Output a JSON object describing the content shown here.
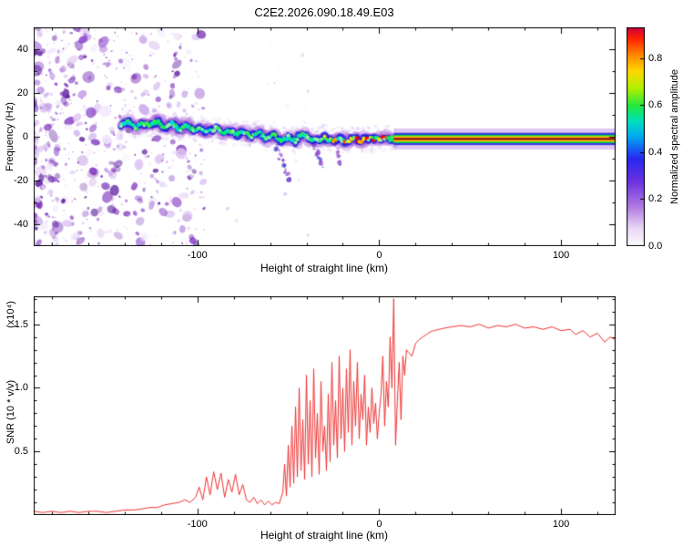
{
  "title": "C2E2.2026.090.18.49.E03",
  "colorbar": {
    "label": "Normalized spectral amplitude",
    "range": [
      0,
      0.93
    ],
    "ticks": [
      0.0,
      0.2,
      0.4,
      0.6,
      0.8
    ],
    "tick_labels": [
      "0.0",
      "0.2",
      "0.4",
      "0.6",
      "0.8"
    ],
    "stops": [
      [
        0,
        "#fdfbff"
      ],
      [
        0.08,
        "#e9d9f6"
      ],
      [
        0.18,
        "#b07ae2"
      ],
      [
        0.3,
        "#6a30e0"
      ],
      [
        0.4,
        "#2828f0"
      ],
      [
        0.5,
        "#00a8f0"
      ],
      [
        0.57,
        "#00e0c0"
      ],
      [
        0.64,
        "#20e840"
      ],
      [
        0.72,
        "#b0f000"
      ],
      [
        0.8,
        "#ffd800"
      ],
      [
        0.88,
        "#ff8000"
      ],
      [
        0.95,
        "#ff2000"
      ],
      [
        1,
        "#cc0040"
      ]
    ]
  },
  "chart_data": [
    {
      "type": "heatmap",
      "name": "doppler-spectrogram",
      "xlabel": "Height of straight line (km)",
      "ylabel": "Frequency (Hz)",
      "xlim": [
        -190,
        130
      ],
      "ylim": [
        -50,
        50
      ],
      "xticks": [
        -100,
        0,
        100
      ],
      "xtick_labels": [
        "-100",
        "0",
        "100"
      ],
      "yticks": [
        -40,
        -20,
        0,
        20,
        40
      ],
      "ytick_labels": [
        "-40",
        "-20",
        "0",
        "20",
        "40"
      ],
      "x_minor_step": 20,
      "y_minor_step": 10,
      "noise": {
        "x_range": [
          -192,
          -96
        ],
        "count": 680,
        "sparse_count": 25,
        "tiny_count": 60,
        "palette": [
          "#f2e8fb",
          "#ddc4f2",
          "#bf97e6",
          "#a06ad8",
          "#8b46c8",
          "#7a30b8",
          "#5e1f9e"
        ]
      },
      "trace": [
        [
          -142,
          5
        ],
        [
          -138,
          7
        ],
        [
          -134,
          4
        ],
        [
          -130,
          6
        ],
        [
          -126,
          5
        ],
        [
          -122,
          7
        ],
        [
          -118,
          4
        ],
        [
          -114,
          6
        ],
        [
          -110,
          3
        ],
        [
          -106,
          5
        ],
        [
          -102,
          3
        ],
        [
          -98,
          4
        ],
        [
          -94,
          2
        ],
        [
          -90,
          4
        ],
        [
          -86,
          2
        ],
        [
          -82,
          3
        ],
        [
          -78,
          1
        ],
        [
          -74,
          2
        ],
        [
          -70,
          0
        ],
        [
          -66,
          2
        ],
        [
          -62,
          -1
        ],
        [
          -58,
          1
        ],
        [
          -54,
          -2
        ],
        [
          -50,
          0
        ],
        [
          -46,
          -2
        ],
        [
          -42,
          2
        ],
        [
          -38,
          -1
        ],
        [
          -34,
          -2
        ],
        [
          -30,
          0
        ],
        [
          -26,
          -2
        ],
        [
          -22,
          -1
        ],
        [
          -18,
          -2
        ],
        [
          -14,
          -1
        ],
        [
          -10,
          -2
        ],
        [
          -6,
          -1
        ],
        [
          -2,
          -1
        ],
        [
          2,
          -1
        ],
        [
          6,
          -1
        ],
        [
          9,
          -1
        ]
      ],
      "hot_region": [
        -32,
        7
      ],
      "streaks": [
        [
          [
            -57,
            -4
          ],
          [
            -49,
            -20
          ]
        ],
        [
          [
            -36,
            -3
          ],
          [
            -31,
            -14
          ]
        ],
        [
          [
            -24,
            -4
          ],
          [
            -21,
            -12
          ]
        ]
      ],
      "straight_line": {
        "x_start": 8,
        "x_end": 130,
        "freq": -1
      },
      "trace_colors": {
        "halo": "rgba(150,70,210,0.28)",
        "mid": "rgba(35,35,225,0.8)",
        "cool_cores": [
          "#00e87c",
          "#00ddd0",
          "#35ef4f",
          "#8ff0b0"
        ],
        "hot_cores": [
          "#ffe000",
          "#ff9800",
          "#ff3800",
          "#ff0000"
        ]
      }
    },
    {
      "type": "line",
      "name": "snr-profile",
      "xlabel": "Height of straight line (km)",
      "ylabel": "SNR (10 * v/v)",
      "scale_label": "(x10⁴)",
      "color": "#ee3333",
      "xlim": [
        -190,
        130
      ],
      "ylim": [
        0,
        1.72
      ],
      "xticks": [
        -100,
        0,
        100
      ],
      "xtick_labels": [
        "-100",
        "0",
        "100"
      ],
      "yticks": [
        0.5,
        1.0,
        1.5
      ],
      "ytick_labels": [
        "0.5",
        "1.0",
        "1.5"
      ],
      "x_minor_step": 20,
      "y_minor_step": 0.1,
      "points": [
        [
          -190,
          0.03
        ],
        [
          -185,
          0.02
        ],
        [
          -180,
          0.03
        ],
        [
          -175,
          0.02
        ],
        [
          -170,
          0.03
        ],
        [
          -165,
          0.02
        ],
        [
          -160,
          0.03
        ],
        [
          -155,
          0.03
        ],
        [
          -150,
          0.02
        ],
        [
          -145,
          0.03
        ],
        [
          -140,
          0.04
        ],
        [
          -135,
          0.04
        ],
        [
          -130,
          0.05
        ],
        [
          -126,
          0.06
        ],
        [
          -122,
          0.06
        ],
        [
          -118,
          0.08
        ],
        [
          -114,
          0.09
        ],
        [
          -110,
          0.1
        ],
        [
          -107,
          0.12
        ],
        [
          -104,
          0.1
        ],
        [
          -101,
          0.14
        ],
        [
          -99,
          0.22
        ],
        [
          -97,
          0.12
        ],
        [
          -95,
          0.3
        ],
        [
          -93,
          0.16
        ],
        [
          -91,
          0.34
        ],
        [
          -89,
          0.2
        ],
        [
          -87,
          0.33
        ],
        [
          -85,
          0.14
        ],
        [
          -83,
          0.28
        ],
        [
          -81,
          0.18
        ],
        [
          -79,
          0.32
        ],
        [
          -77,
          0.16
        ],
        [
          -75,
          0.24
        ],
        [
          -73,
          0.12
        ],
        [
          -71,
          0.1
        ],
        [
          -69,
          0.14
        ],
        [
          -67,
          0.09
        ],
        [
          -65,
          0.12
        ],
        [
          -63,
          0.08
        ],
        [
          -61,
          0.11
        ],
        [
          -59,
          0.08
        ],
        [
          -57,
          0.1
        ],
        [
          -55,
          0.09
        ],
        [
          -53,
          0.18
        ],
        [
          -52,
          0.4
        ],
        [
          -51,
          0.15
        ],
        [
          -50,
          0.55
        ],
        [
          -49,
          0.22
        ],
        [
          -48,
          0.7
        ],
        [
          -47,
          0.25
        ],
        [
          -46,
          0.85
        ],
        [
          -45,
          0.3
        ],
        [
          -44,
          1.0
        ],
        [
          -43,
          0.35
        ],
        [
          -42,
          0.75
        ],
        [
          -41,
          0.28
        ],
        [
          -40,
          1.1
        ],
        [
          -39,
          0.4
        ],
        [
          -38,
          0.9
        ],
        [
          -37,
          0.3
        ],
        [
          -36,
          1.15
        ],
        [
          -35,
          0.45
        ],
        [
          -34,
          0.8
        ],
        [
          -33,
          0.32
        ],
        [
          -32,
          1.05
        ],
        [
          -31,
          0.5
        ],
        [
          -30,
          0.7
        ],
        [
          -29,
          0.35
        ],
        [
          -28,
          0.95
        ],
        [
          -27,
          0.42
        ],
        [
          -26,
          1.2
        ],
        [
          -25,
          0.55
        ],
        [
          -24,
          0.9
        ],
        [
          -23,
          0.45
        ],
        [
          -22,
          1.25
        ],
        [
          -21,
          0.6
        ],
        [
          -20,
          1.0
        ],
        [
          -19,
          0.5
        ],
        [
          -18,
          1.15
        ],
        [
          -17,
          0.65
        ],
        [
          -16,
          1.3
        ],
        [
          -15,
          0.55
        ],
        [
          -14,
          1.05
        ],
        [
          -13,
          0.7
        ],
        [
          -12,
          1.2
        ],
        [
          -11,
          0.6
        ],
        [
          -10,
          0.95
        ],
        [
          -9,
          0.75
        ],
        [
          -8,
          1.1
        ],
        [
          -7,
          0.55
        ],
        [
          -6,
          0.85
        ],
        [
          -5,
          0.65
        ],
        [
          -4,
          1.0
        ],
        [
          -3,
          0.72
        ],
        [
          -2,
          0.88
        ],
        [
          -1,
          0.6
        ],
        [
          0,
          0.8
        ],
        [
          1,
          0.95
        ],
        [
          2,
          1.25
        ],
        [
          3,
          0.7
        ],
        [
          4,
          1.05
        ],
        [
          5,
          0.85
        ],
        [
          6,
          1.4
        ],
        [
          7,
          1.0
        ],
        [
          8,
          1.7
        ],
        [
          9,
          0.55
        ],
        [
          10,
          0.9
        ],
        [
          11,
          1.2
        ],
        [
          12,
          0.75
        ],
        [
          13,
          1.25
        ],
        [
          14,
          1.1
        ],
        [
          15,
          1.3
        ],
        [
          16,
          1.28
        ],
        [
          18,
          1.25
        ],
        [
          20,
          1.35
        ],
        [
          22,
          1.38
        ],
        [
          24,
          1.4
        ],
        [
          26,
          1.42
        ],
        [
          28,
          1.44
        ],
        [
          30,
          1.45
        ],
        [
          33,
          1.46
        ],
        [
          36,
          1.47
        ],
        [
          40,
          1.48
        ],
        [
          45,
          1.49
        ],
        [
          50,
          1.48
        ],
        [
          55,
          1.5
        ],
        [
          60,
          1.47
        ],
        [
          65,
          1.49
        ],
        [
          70,
          1.48
        ],
        [
          75,
          1.5
        ],
        [
          80,
          1.47
        ],
        [
          85,
          1.48
        ],
        [
          90,
          1.46
        ],
        [
          95,
          1.48
        ],
        [
          100,
          1.45
        ],
        [
          105,
          1.46
        ],
        [
          108,
          1.42
        ],
        [
          112,
          1.45
        ],
        [
          116,
          1.4
        ],
        [
          120,
          1.43
        ],
        [
          124,
          1.36
        ],
        [
          127,
          1.4
        ],
        [
          130,
          1.38
        ]
      ]
    }
  ]
}
